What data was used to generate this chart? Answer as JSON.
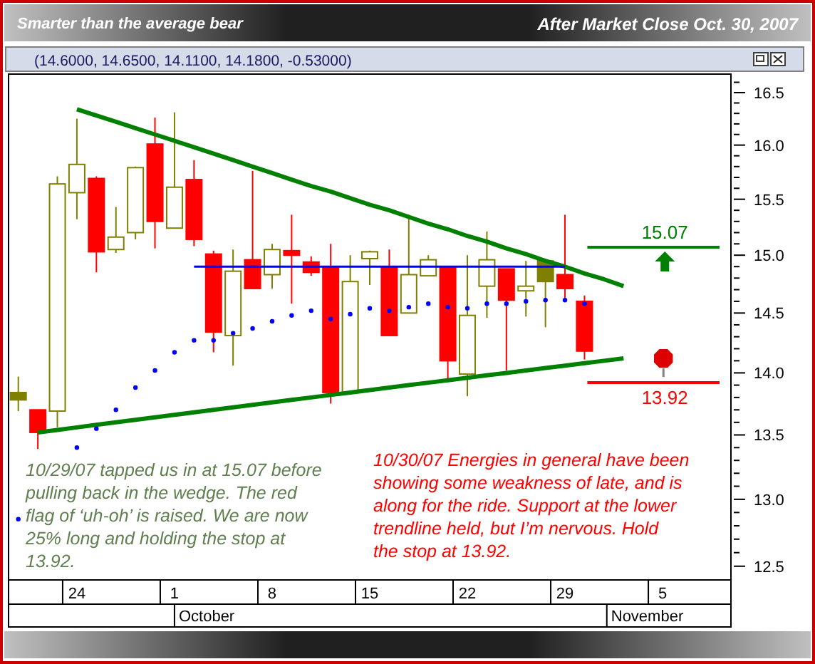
{
  "chart_data": {
    "type": "candlestick",
    "title": "After Market Close Oct. 30, 2007",
    "subtitle": "(14.6000, 14.6500, 14.1100, 14.1800, -0.53000)",
    "categories": [
      null,
      null,
      null,
      "24",
      null,
      null,
      null,
      null,
      "1",
      null,
      null,
      null,
      null,
      "8",
      null,
      null,
      null,
      null,
      "15",
      null,
      null,
      null,
      null,
      "22",
      null,
      null,
      null,
      null,
      "29",
      null,
      null,
      null,
      null,
      "5",
      null,
      null,
      null
    ],
    "ohlc": [
      [
        13.84,
        13.97,
        13.69,
        13.78
      ],
      [
        13.7,
        13.7,
        13.39,
        13.52
      ],
      [
        13.69,
        15.71,
        13.56,
        15.64
      ],
      [
        15.56,
        16.25,
        15.32,
        15.82
      ],
      [
        15.69,
        15.71,
        14.85,
        15.03
      ],
      [
        15.05,
        15.43,
        15.02,
        15.16
      ],
      [
        15.2,
        15.8,
        15.14,
        15.79
      ],
      [
        16.01,
        16.26,
        15.06,
        15.3
      ],
      [
        15.24,
        16.31,
        15.24,
        15.61
      ],
      [
        15.68,
        15.86,
        15.08,
        15.14
      ],
      [
        15.01,
        15.04,
        14.17,
        14.34
      ],
      [
        14.31,
        15.05,
        14.06,
        14.86
      ],
      [
        14.96,
        15.76,
        14.71,
        14.71
      ],
      [
        14.83,
        15.1,
        14.71,
        15.05
      ],
      [
        15.04,
        15.36,
        14.58,
        15.0
      ],
      [
        14.94,
        14.99,
        14.82,
        14.85
      ],
      [
        14.89,
        15.1,
        13.75,
        13.84
      ],
      [
        13.84,
        15.0,
        13.83,
        14.77
      ],
      [
        14.97,
        15.04,
        14.74,
        15.03
      ],
      [
        14.89,
        15.05,
        14.31,
        14.31
      ],
      [
        14.5,
        15.36,
        14.5,
        14.83
      ],
      [
        14.82,
        15.0,
        14.82,
        14.96
      ],
      [
        14.89,
        14.89,
        13.95,
        14.1
      ],
      [
        13.99,
        15.0,
        13.81,
        14.48
      ],
      [
        14.73,
        15.21,
        14.46,
        14.96
      ],
      [
        14.88,
        14.88,
        14.02,
        14.61
      ],
      [
        14.69,
        14.95,
        14.47,
        14.73
      ],
      [
        14.95,
        14.95,
        14.38,
        14.77
      ],
      [
        14.83,
        15.36,
        14.61,
        14.71
      ],
      [
        14.6,
        14.65,
        14.11,
        14.18
      ],
      null,
      null,
      null,
      null,
      null,
      null,
      null
    ],
    "colors": [
      "#808000",
      "#ff0000",
      "#808000",
      "#808000",
      "#ff0000",
      "#808000",
      "#808000",
      "#ff0000",
      "#808000",
      "#ff0000",
      "#ff0000",
      "#808000",
      "#ff0000",
      "#808000",
      "#ff0000",
      "#ff0000",
      "#ff0000",
      "#808000",
      "#808000",
      "#ff0000",
      "#808000",
      "#808000",
      "#ff0000",
      "#808000",
      "#808000",
      "#ff0000",
      "#808000",
      "#808000",
      "#ff0000",
      "#ff0000",
      null,
      null,
      null,
      null,
      null,
      null,
      null
    ],
    "series": [
      {
        "type": "line",
        "color": "#008000",
        "values": [
          null,
          null,
          null,
          16.34,
          16.28,
          16.22,
          16.16,
          16.1,
          16.04,
          15.98,
          15.92,
          15.86,
          15.8,
          15.74,
          15.68,
          15.62,
          15.57,
          15.51,
          15.45,
          15.4,
          15.34,
          15.28,
          15.23,
          15.17,
          15.12,
          15.06,
          15.01,
          14.95,
          14.9,
          14.84,
          14.79,
          14.73,
          null,
          null,
          null,
          null,
          null
        ]
      },
      {
        "type": "line",
        "color": "#008000",
        "values": [
          null,
          13.52,
          13.54,
          13.56,
          13.58,
          13.6,
          13.62,
          13.64,
          13.66,
          13.68,
          13.7,
          13.72,
          13.74,
          13.76,
          13.78,
          13.8,
          13.82,
          13.84,
          13.86,
          13.88,
          13.9,
          13.92,
          13.94,
          13.96,
          13.98,
          14.0,
          14.02,
          14.04,
          14.06,
          14.08,
          14.1,
          14.12,
          null,
          null,
          null,
          null,
          null
        ]
      },
      {
        "type": "line",
        "color": "#0000ff",
        "values": [
          null,
          null,
          null,
          null,
          null,
          null,
          null,
          null,
          null,
          14.9,
          14.9,
          14.9,
          14.9,
          14.9,
          14.9,
          14.9,
          14.9,
          14.9,
          14.9,
          14.9,
          14.9,
          14.9,
          14.9,
          14.9,
          14.9,
          14.9,
          14.9,
          14.9,
          14.9,
          null,
          null,
          null,
          null,
          null,
          null,
          null,
          null
        ]
      },
      {
        "type": "scatter",
        "color": "#0000ff",
        "values": [
          12.85,
          null,
          null,
          13.4,
          13.55,
          13.7,
          13.88,
          14.02,
          14.17,
          14.27,
          14.27,
          14.33,
          14.37,
          14.43,
          14.48,
          14.52,
          14.45,
          14.49,
          14.54,
          14.52,
          14.55,
          14.58,
          14.55,
          14.54,
          14.58,
          14.58,
          14.6,
          14.61,
          14.61,
          14.58,
          null,
          null,
          null,
          null,
          null,
          null,
          null
        ]
      }
    ],
    "log": "y",
    "ylim": [
      12.4,
      16.68
    ],
    "yticks": [
      {
        "value": 12.5,
        "label": "12.5"
      },
      {
        "value": 12.6,
        "label": null
      },
      {
        "value": 12.7,
        "label": null
      },
      {
        "value": 12.8,
        "label": null
      },
      {
        "value": 12.9,
        "label": null
      },
      {
        "value": 13,
        "label": "13.0"
      },
      {
        "value": 13.1,
        "label": null
      },
      {
        "value": 13.2,
        "label": null
      },
      {
        "value": 13.3,
        "label": null
      },
      {
        "value": 13.4,
        "label": null
      },
      {
        "value": 13.5,
        "label": "13.5"
      },
      {
        "value": 13.6,
        "label": null
      },
      {
        "value": 13.7,
        "label": null
      },
      {
        "value": 13.8,
        "label": null
      },
      {
        "value": 13.9,
        "label": null
      },
      {
        "value": 14,
        "label": "14.0"
      },
      {
        "value": 14.1,
        "label": null
      },
      {
        "value": 14.2,
        "label": null
      },
      {
        "value": 14.3,
        "label": null
      },
      {
        "value": 14.4,
        "label": null
      },
      {
        "value": 14.5,
        "label": "14.5"
      },
      {
        "value": 14.6,
        "label": null
      },
      {
        "value": 14.7,
        "label": null
      },
      {
        "value": 14.8,
        "label": null
      },
      {
        "value": 14.9,
        "label": null
      },
      {
        "value": 15,
        "label": "15.0"
      },
      {
        "value": 15.1,
        "label": null
      },
      {
        "value": 15.2,
        "label": null
      },
      {
        "value": 15.3,
        "label": null
      },
      {
        "value": 15.4,
        "label": null
      },
      {
        "value": 15.5,
        "label": "15.5"
      },
      {
        "value": 15.6,
        "label": null
      },
      {
        "value": 15.7,
        "label": null
      },
      {
        "value": 15.8,
        "label": null
      },
      {
        "value": 15.9,
        "label": null
      },
      {
        "value": 16,
        "label": "16.0"
      },
      {
        "value": 16.1,
        "label": null
      },
      {
        "value": 16.2,
        "label": null
      },
      {
        "value": 16.3,
        "label": null
      },
      {
        "value": 16.4,
        "label": null
      },
      {
        "value": 16.5,
        "label": "16.5"
      },
      {
        "value": 16.6,
        "label": null
      }
    ],
    "ref_lines": [
      {
        "axis": "y",
        "value": 15.07,
        "label": "15.07",
        "color": "#008000"
      },
      {
        "axis": "y",
        "value": 13.92,
        "label": "13.92",
        "color": "#ff0000"
      }
    ],
    "annotations": [
      "Smarter than the average bear",
      "10/29/07 tapped us in at 15.07 before pulling back in the wedge. The red flag of ‘uh-oh’ is raised. We are now 25% long and holding the stop at 13.92.",
      "10/30/07 Energies in general have been showing some weakness of late, and is along for the ride. Support at the lower trendline held, but I’m nervous. Hold the stop at 13.92.",
      "October",
      "November"
    ],
    "grid": false
  }
}
